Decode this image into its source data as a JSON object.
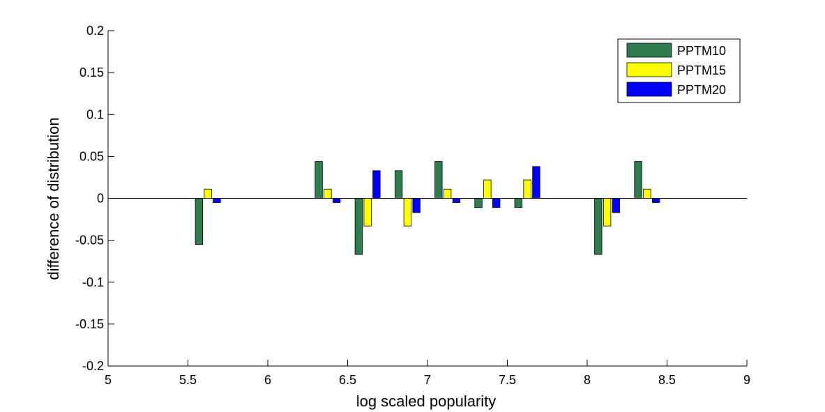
{
  "chart_data": {
    "type": "bar",
    "xlabel": "log scaled popularity",
    "ylabel": "difference of distribution",
    "xlim": [
      5,
      9
    ],
    "ylim": [
      -0.2,
      0.2
    ],
    "xticks": [
      "5",
      "5.5",
      "6",
      "6.5",
      "7",
      "7.5",
      "8",
      "8.5",
      "9"
    ],
    "yticks": [
      "-0.2",
      "-0.15",
      "-0.1",
      "-0.05",
      "0",
      "0.05",
      "0.1",
      "0.15",
      "0.2"
    ],
    "grid": false,
    "legend_position": "top-right",
    "x": [
      5.625,
      6.375,
      6.625,
      6.875,
      7.125,
      7.375,
      7.625,
      8.125,
      8.375
    ],
    "series": [
      {
        "name": "PPTM10",
        "color": "#2e7d4f",
        "values": [
          -0.055,
          0.044,
          -0.067,
          0.033,
          0.044,
          -0.011,
          -0.011,
          -0.067,
          0.044
        ]
      },
      {
        "name": "PPTM15",
        "color": "#ffff00",
        "values": [
          0.011,
          0.011,
          -0.033,
          -0.033,
          0.011,
          0.022,
          0.022,
          -0.033,
          0.011
        ]
      },
      {
        "name": "PPTM20",
        "color": "#0000ff",
        "values": [
          -0.005,
          -0.005,
          0.033,
          -0.017,
          -0.005,
          -0.011,
          0.038,
          -0.017,
          -0.005
        ]
      }
    ]
  }
}
